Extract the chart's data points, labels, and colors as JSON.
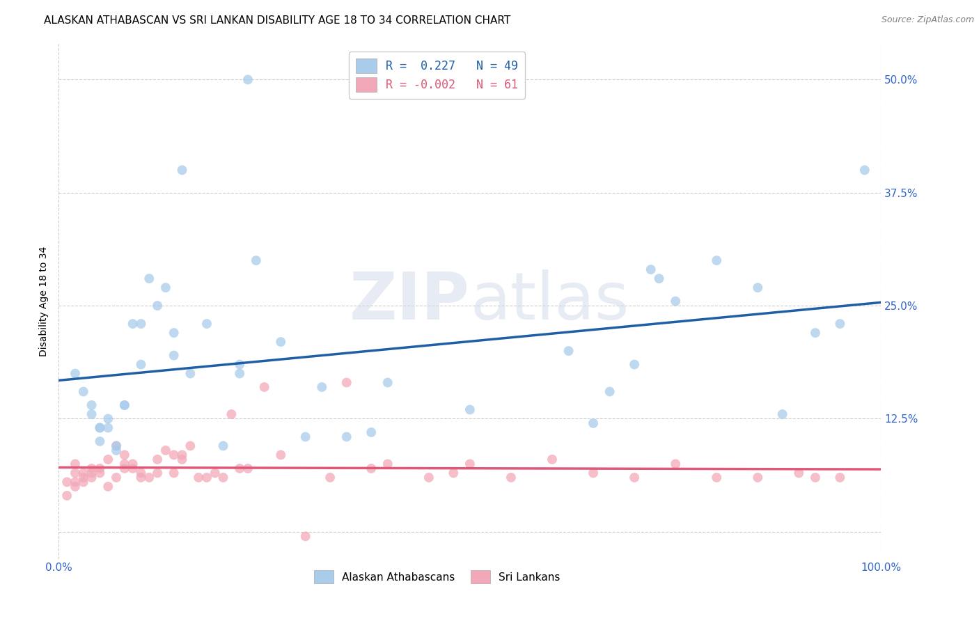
{
  "title": "ALASKAN ATHABASCAN VS SRI LANKAN DISABILITY AGE 18 TO 34 CORRELATION CHART",
  "source": "Source: ZipAtlas.com",
  "ylabel": "Disability Age 18 to 34",
  "xlim": [
    0,
    1.0
  ],
  "ylim": [
    -0.03,
    0.54
  ],
  "xticks": [
    0.0,
    1.0
  ],
  "xticklabels": [
    "0.0%",
    "100.0%"
  ],
  "yticks": [
    0.0,
    0.125,
    0.25,
    0.375,
    0.5
  ],
  "yticklabels": [
    "",
    "12.5%",
    "25.0%",
    "37.5%",
    "50.0%"
  ],
  "watermark_zip": "ZIP",
  "watermark_atlas": "atlas",
  "blue_color": "#A8CCEA",
  "pink_color": "#F2A8B8",
  "blue_line_color": "#1F5FA6",
  "pink_line_color": "#E05878",
  "alaskan_x": [
    0.02,
    0.03,
    0.04,
    0.04,
    0.05,
    0.05,
    0.05,
    0.06,
    0.06,
    0.07,
    0.07,
    0.08,
    0.08,
    0.09,
    0.1,
    0.1,
    0.11,
    0.12,
    0.13,
    0.14,
    0.14,
    0.15,
    0.16,
    0.18,
    0.2,
    0.22,
    0.22,
    0.23,
    0.24,
    0.27,
    0.3,
    0.32,
    0.35,
    0.38,
    0.4,
    0.5,
    0.62,
    0.65,
    0.67,
    0.7,
    0.72,
    0.73,
    0.75,
    0.8,
    0.85,
    0.88,
    0.92,
    0.95,
    0.98
  ],
  "alaskan_y": [
    0.175,
    0.155,
    0.14,
    0.13,
    0.115,
    0.115,
    0.1,
    0.125,
    0.115,
    0.095,
    0.09,
    0.14,
    0.14,
    0.23,
    0.185,
    0.23,
    0.28,
    0.25,
    0.27,
    0.22,
    0.195,
    0.4,
    0.175,
    0.23,
    0.095,
    0.175,
    0.185,
    0.5,
    0.3,
    0.21,
    0.105,
    0.16,
    0.105,
    0.11,
    0.165,
    0.135,
    0.2,
    0.12,
    0.155,
    0.185,
    0.29,
    0.28,
    0.255,
    0.3,
    0.27,
    0.13,
    0.22,
    0.23,
    0.4
  ],
  "srilanka_x": [
    0.01,
    0.01,
    0.02,
    0.02,
    0.02,
    0.02,
    0.03,
    0.03,
    0.03,
    0.04,
    0.04,
    0.04,
    0.05,
    0.05,
    0.06,
    0.06,
    0.07,
    0.07,
    0.08,
    0.08,
    0.08,
    0.09,
    0.09,
    0.1,
    0.1,
    0.11,
    0.12,
    0.12,
    0.13,
    0.14,
    0.14,
    0.15,
    0.15,
    0.16,
    0.17,
    0.18,
    0.19,
    0.2,
    0.21,
    0.22,
    0.23,
    0.25,
    0.27,
    0.3,
    0.33,
    0.35,
    0.38,
    0.4,
    0.45,
    0.48,
    0.5,
    0.55,
    0.6,
    0.65,
    0.7,
    0.75,
    0.8,
    0.85,
    0.9,
    0.92,
    0.95
  ],
  "srilanka_y": [
    0.055,
    0.04,
    0.075,
    0.05,
    0.065,
    0.055,
    0.06,
    0.055,
    0.065,
    0.065,
    0.07,
    0.06,
    0.065,
    0.07,
    0.08,
    0.05,
    0.06,
    0.095,
    0.075,
    0.07,
    0.085,
    0.07,
    0.075,
    0.06,
    0.065,
    0.06,
    0.08,
    0.065,
    0.09,
    0.065,
    0.085,
    0.085,
    0.08,
    0.095,
    0.06,
    0.06,
    0.065,
    0.06,
    0.13,
    0.07,
    0.07,
    0.16,
    0.085,
    -0.005,
    0.06,
    0.165,
    0.07,
    0.075,
    0.06,
    0.065,
    0.075,
    0.06,
    0.08,
    0.065,
    0.06,
    0.075,
    0.06,
    0.06,
    0.065,
    0.06,
    0.06
  ],
  "title_fontsize": 11,
  "axis_label_fontsize": 10,
  "tick_fontsize": 11
}
